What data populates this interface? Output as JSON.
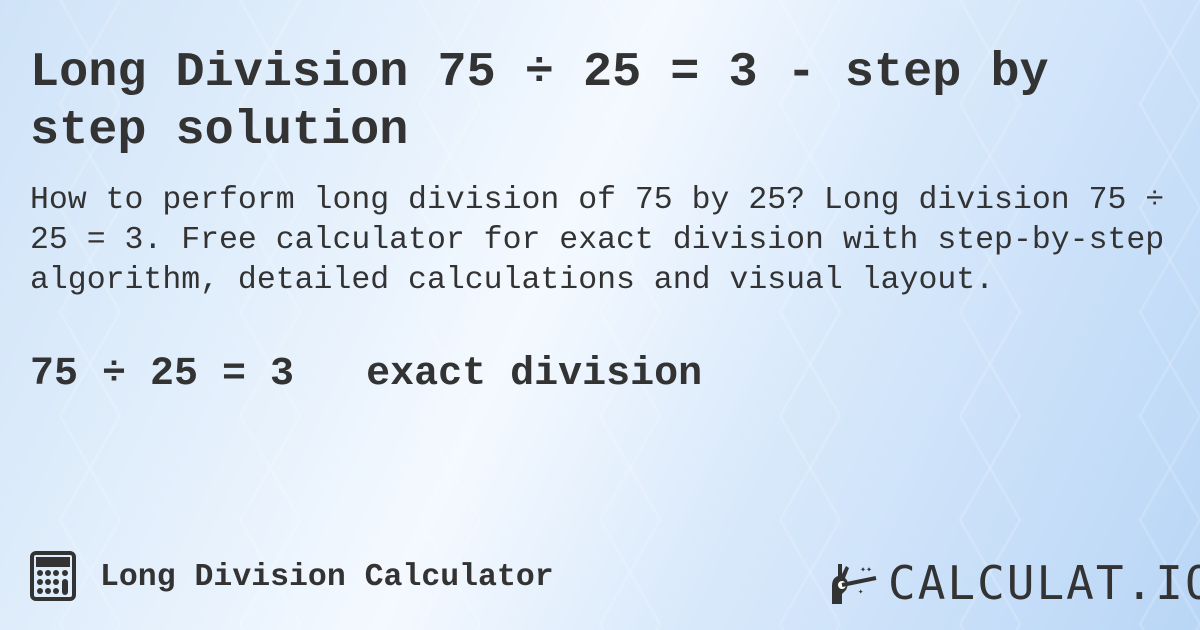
{
  "title": "Long Division 75 ÷ 25 = 3 - step by step solution",
  "description": "How to perform long division of 75 by 25? Long division 75 ÷ 25 = 3. Free calculator for exact division with step-by-step algorithm, detailed calculations and visual layout.",
  "result": {
    "equation": "75 ÷ 25 = 3",
    "type": "exact division"
  },
  "footer": {
    "icon": "calculator-icon",
    "label": "Long Division Calculator"
  },
  "logo": {
    "text": "CALCULAT.IO",
    "icon": "magic-hand-icon"
  },
  "colors": {
    "text": "#333333",
    "background": "#dbeafb"
  }
}
